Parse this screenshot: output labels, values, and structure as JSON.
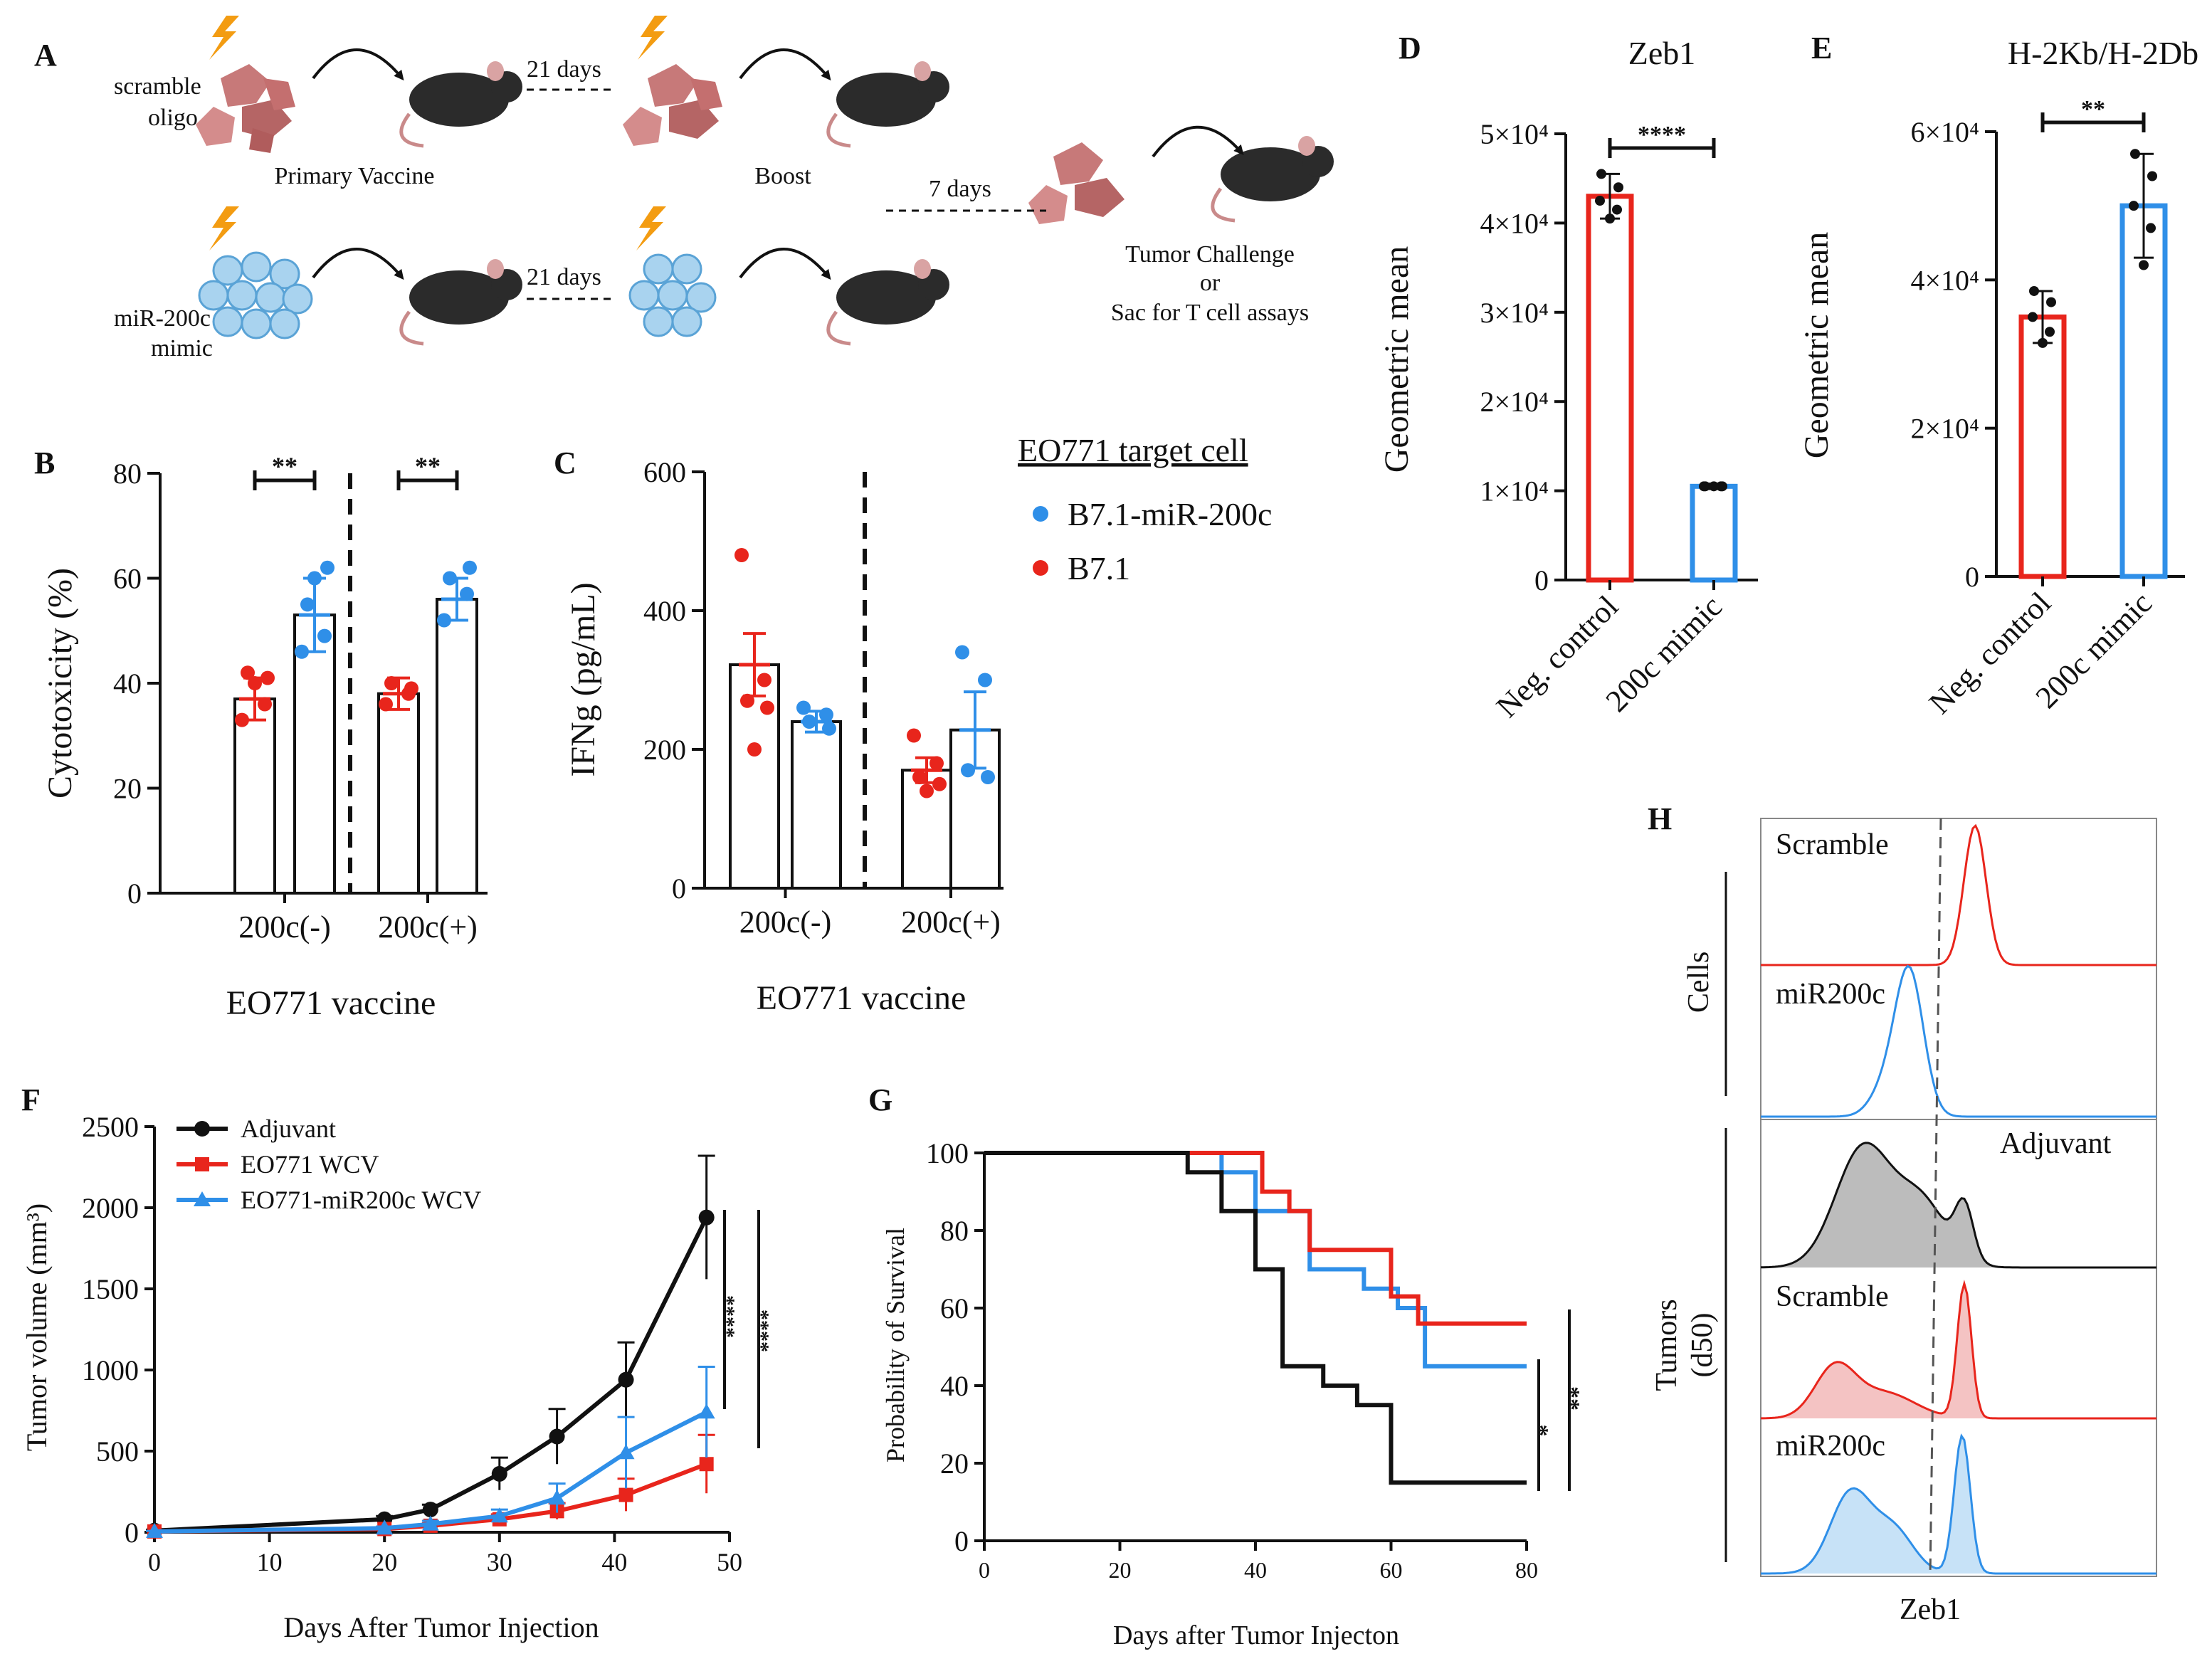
{
  "colors": {
    "red": "#e8251c",
    "blue": "#2f8fe8",
    "black": "#111111",
    "grey": "#bcbcbc",
    "pink": "#f4c3c3",
    "lightblue": "#c7e2f7"
  },
  "panels": {
    "A": "A",
    "B": "B",
    "C": "C",
    "D": "D",
    "E": "E",
    "F": "F",
    "G": "G",
    "H": "H"
  },
  "schematic": {
    "scramble_label_1": "scramble",
    "scramble_label_2": "oligo",
    "mimic_label_1": "miR-200c",
    "mimic_label_2": "mimic",
    "primary": "Primary Vaccine",
    "boost": "Boost",
    "days21_top": "21 days",
    "days21_bottom": "21 days",
    "days7": "7 days",
    "outcome_1": "Tumor Challenge",
    "outcome_2": "or",
    "outcome_3": "Sac for T cell assays"
  },
  "legend_bc": {
    "title": "EO771 target cell",
    "items": [
      {
        "label": "B7.1-miR-200c",
        "color": "#2f8fe8"
      },
      {
        "label": "B7.1",
        "color": "#e8251c"
      }
    ]
  },
  "chart_data": [
    {
      "id": "B",
      "type": "bar",
      "ylabel": "Cytotoxicity (%)",
      "xlabel": "EO771 vaccine",
      "ylim": [
        0,
        80
      ],
      "yticks": [
        "0",
        "20",
        "40",
        "60",
        "80"
      ],
      "groups": [
        "200c(-)",
        "200c(+)"
      ],
      "series": [
        {
          "name": "B7.1",
          "values": [
            37,
            38
          ],
          "err": [
            4,
            3
          ],
          "points": [
            [
              33,
              36,
              42,
              41,
              40
            ],
            [
              36,
              38,
              40,
              39
            ]
          ]
        },
        {
          "name": "B7.1-miR-200c",
          "values": [
            53,
            56
          ],
          "err": [
            7,
            4
          ],
          "points": [
            [
              46,
              49,
              55,
              62,
              60
            ],
            [
              52,
              57,
              60,
              62
            ]
          ]
        }
      ],
      "sig": [
        "**",
        "**"
      ]
    },
    {
      "id": "C",
      "type": "bar",
      "ylabel": "IFNg (pg/mL)",
      "xlabel": "EO771 vaccine",
      "ylim": [
        0,
        600
      ],
      "yticks": [
        "0",
        "200",
        "400",
        "600"
      ],
      "groups": [
        "200c(-)",
        "200c(+)"
      ],
      "series": [
        {
          "name": "B7.1",
          "values": [
            322,
            170
          ],
          "err": [
            45,
            18
          ],
          "points": [
            [
              480,
              300,
              270,
              260,
              200
            ],
            [
              220,
              180,
              160,
              150,
              140
            ]
          ]
        },
        {
          "name": "B7.1-miR-200c",
          "values": [
            240,
            228
          ],
          "err": [
            15,
            55
          ],
          "points": [
            [
              260,
              250,
              240,
              230
            ],
            [
              340,
              300,
              170,
              160
            ]
          ]
        }
      ]
    },
    {
      "id": "D",
      "type": "bar",
      "title": "Zeb1",
      "ylabel": "Geometric mean",
      "ylim": [
        0,
        50000
      ],
      "yticks": [
        "0",
        "1×10⁴",
        "2×10⁴",
        "3×10⁴",
        "4×10⁴",
        "5×10⁴"
      ],
      "categories": [
        "Neg. control",
        "200c mimic"
      ],
      "values": [
        43000,
        10500
      ],
      "err": [
        2500,
        300
      ],
      "points": [
        [
          45500,
          44000,
          42500,
          41500,
          40500
        ],
        [
          10500,
          10500,
          10500,
          10500,
          10500
        ]
      ],
      "sig": "****"
    },
    {
      "id": "E",
      "type": "bar",
      "title": "H-2Kb/H-2Db",
      "ylabel": "Geometric mean",
      "ylim": [
        0,
        60000
      ],
      "yticks": [
        "0",
        "2×10⁴",
        "4×10⁴",
        "6×10⁴"
      ],
      "categories": [
        "Neg. control",
        "200c mimic"
      ],
      "values": [
        35000,
        50000
      ],
      "err": [
        3500,
        7000
      ],
      "points": [
        [
          38500,
          37000,
          35000,
          33000,
          31500
        ],
        [
          57000,
          54000,
          50000,
          47000,
          42000
        ]
      ],
      "sig": "**"
    },
    {
      "id": "F",
      "type": "line",
      "xlabel": "Days After Tumor Injection",
      "ylabel": "Tumor volume (mm³)",
      "xlim": [
        0,
        50
      ],
      "ylim": [
        0,
        2500
      ],
      "xticks": [
        "0",
        "10",
        "20",
        "30",
        "40",
        "50"
      ],
      "yticks": [
        "0",
        "500",
        "1000",
        "1500",
        "2000",
        "2500"
      ],
      "x": [
        0,
        20,
        24,
        30,
        35,
        41,
        48
      ],
      "series": [
        {
          "name": "Adjuvant",
          "values": [
            10,
            80,
            140,
            360,
            590,
            940,
            1940
          ],
          "err": [
            5,
            20,
            30,
            100,
            170,
            230,
            380
          ]
        },
        {
          "name": "EO771 WCV",
          "values": [
            5,
            20,
            40,
            80,
            130,
            230,
            420
          ],
          "err": [
            3,
            8,
            15,
            30,
            50,
            100,
            180
          ]
        },
        {
          "name": "EO771-miR200c WCV",
          "values": [
            5,
            25,
            50,
            100,
            210,
            490,
            740
          ],
          "err": [
            3,
            10,
            20,
            40,
            90,
            220,
            280
          ]
        }
      ],
      "sig": [
        "****",
        "****"
      ]
    },
    {
      "id": "G",
      "type": "line",
      "xlabel": "Days after Tumor Injecton",
      "ylabel": "Probability of Survival",
      "xlim": [
        0,
        80
      ],
      "ylim": [
        0,
        100
      ],
      "xticks": [
        "0",
        "20",
        "40",
        "60",
        "80"
      ],
      "yticks": [
        "0",
        "20",
        "40",
        "60",
        "80",
        "100"
      ],
      "series": [
        {
          "name": "Adjuvant",
          "steps": [
            [
              0,
              100
            ],
            [
              30,
              100
            ],
            [
              30,
              95
            ],
            [
              35,
              95
            ],
            [
              35,
              85
            ],
            [
              40,
              85
            ],
            [
              40,
              70
            ],
            [
              44,
              70
            ],
            [
              44,
              45
            ],
            [
              50,
              45
            ],
            [
              50,
              40
            ],
            [
              55,
              40
            ],
            [
              55,
              35
            ],
            [
              60,
              35
            ],
            [
              60,
              15
            ],
            [
              80,
              15
            ]
          ]
        },
        {
          "name": "EO771 WCV",
          "steps": [
            [
              0,
              100
            ],
            [
              41,
              100
            ],
            [
              41,
              90
            ],
            [
              45,
              90
            ],
            [
              45,
              85
            ],
            [
              48,
              85
            ],
            [
              48,
              75
            ],
            [
              60,
              75
            ],
            [
              60,
              63
            ],
            [
              64,
              63
            ],
            [
              64,
              56
            ],
            [
              80,
              56
            ]
          ]
        },
        {
          "name": "EO771-miR200c WCV",
          "steps": [
            [
              0,
              100
            ],
            [
              35,
              100
            ],
            [
              35,
              95
            ],
            [
              40,
              95
            ],
            [
              40,
              85
            ],
            [
              48,
              85
            ],
            [
              48,
              70
            ],
            [
              56,
              70
            ],
            [
              56,
              65
            ],
            [
              61,
              65
            ],
            [
              61,
              60
            ],
            [
              65,
              60
            ],
            [
              65,
              45
            ],
            [
              80,
              45
            ]
          ]
        }
      ],
      "sig": [
        "*",
        "**"
      ]
    },
    {
      "id": "H",
      "type": "histogram",
      "xlabel": "Zeb1",
      "groups": [
        {
          "label": "Cells",
          "rows": [
            {
              "name": "Scramble",
              "color": "#e8251c",
              "filled": false
            },
            {
              "name": "miR200c",
              "color": "#2f8fe8",
              "filled": false
            }
          ]
        },
        {
          "label1": "Tumors",
          "label2": "(d50)",
          "rows": [
            {
              "name": "Adjuvant",
              "color": "#111111",
              "filled": true
            },
            {
              "name": "Scramble",
              "color": "#e8251c",
              "filled": true
            },
            {
              "name": "miR200c",
              "color": "#2f8fe8",
              "filled": true
            }
          ]
        }
      ]
    }
  ]
}
